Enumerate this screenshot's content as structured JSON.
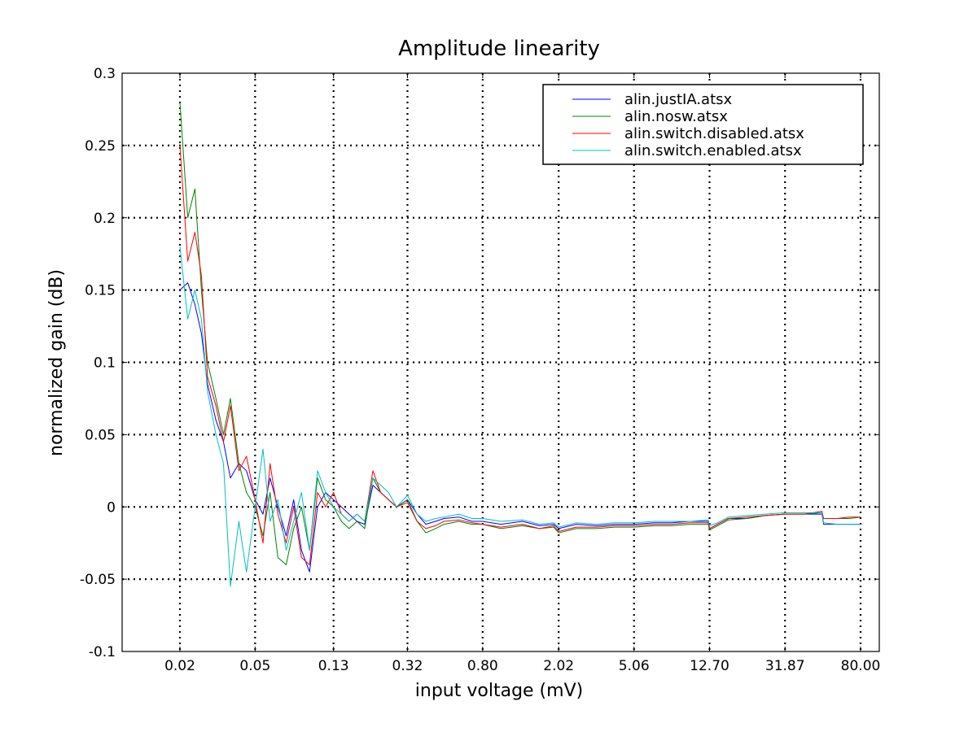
{
  "chart_data": {
    "type": "line",
    "title": "Amplitude linearity",
    "xlabel": "input voltage (mV)",
    "ylabel": "normalized gain (dB)",
    "x_scale": "log",
    "x_ticks": [
      0.02,
      0.05,
      0.13,
      0.32,
      0.8,
      2.02,
      5.06,
      12.7,
      31.87,
      80.0
    ],
    "x_tick_labels": [
      "0.02",
      "0.05",
      "0.13",
      "0.32",
      "0.80",
      "2.02",
      "5.06",
      "12.70",
      "31.87",
      "80.00"
    ],
    "ylim": [
      -0.1,
      0.3
    ],
    "y_ticks": [
      -0.1,
      -0.05,
      0,
      0.05,
      0.1,
      0.15,
      0.2,
      0.25,
      0.3
    ],
    "y_tick_labels": [
      "-0.1",
      "-0.05",
      "0",
      "0.05",
      "0.1",
      "0.15",
      "0.2",
      "0.25",
      "0.3"
    ],
    "grid": true,
    "legend_position": "top-right",
    "series": [
      {
        "name": "alin.justIA.atsx",
        "color": "#0000ff",
        "x": [
          0.02,
          0.022,
          0.024,
          0.026,
          0.028,
          0.031,
          0.034,
          0.037,
          0.041,
          0.045,
          0.05,
          0.055,
          0.06,
          0.066,
          0.073,
          0.08,
          0.088,
          0.097,
          0.107,
          0.118,
          0.13,
          0.143,
          0.157,
          0.173,
          0.19,
          0.21,
          0.231,
          0.254,
          0.28,
          0.32,
          0.36,
          0.4,
          0.45,
          0.5,
          0.6,
          0.7,
          0.8,
          1.0,
          1.3,
          1.6,
          1.9,
          2.02,
          2.5,
          3.2,
          4.0,
          5.06,
          6.5,
          8.0,
          10.0,
          12.5,
          12.7,
          14.0,
          16.0,
          20.0,
          25.0,
          31.87,
          40.0,
          50.0,
          51.0,
          60.0,
          70.0,
          80.0
        ],
        "y": [
          0.15,
          0.155,
          0.14,
          0.12,
          0.085,
          0.06,
          0.045,
          0.02,
          0.03,
          0.025,
          0.005,
          -0.005,
          0.02,
          0.0,
          -0.02,
          0.005,
          -0.03,
          -0.045,
          0.0,
          0.01,
          0.005,
          0.0,
          -0.005,
          -0.01,
          -0.012,
          0.015,
          0.01,
          0.005,
          0.0,
          0.005,
          -0.005,
          -0.012,
          -0.01,
          -0.008,
          -0.007,
          -0.01,
          -0.01,
          -0.012,
          -0.01,
          -0.013,
          -0.012,
          -0.015,
          -0.012,
          -0.013,
          -0.012,
          -0.012,
          -0.011,
          -0.011,
          -0.01,
          -0.01,
          -0.015,
          -0.012,
          -0.008,
          -0.008,
          -0.006,
          -0.005,
          -0.005,
          -0.005,
          -0.012,
          -0.012,
          -0.012,
          -0.012
        ]
      },
      {
        "name": "alin.nosw.atsx",
        "color": "#008000",
        "x": [
          0.02,
          0.022,
          0.024,
          0.026,
          0.028,
          0.031,
          0.034,
          0.037,
          0.041,
          0.045,
          0.05,
          0.055,
          0.06,
          0.066,
          0.073,
          0.08,
          0.088,
          0.097,
          0.107,
          0.118,
          0.13,
          0.143,
          0.157,
          0.173,
          0.19,
          0.21,
          0.231,
          0.254,
          0.28,
          0.32,
          0.36,
          0.4,
          0.45,
          0.5,
          0.6,
          0.7,
          0.8,
          1.0,
          1.3,
          1.6,
          1.9,
          2.02,
          2.5,
          3.2,
          4.0,
          5.06,
          6.5,
          8.0,
          10.0,
          12.5,
          12.7,
          14.0,
          16.0,
          20.0,
          25.0,
          31.87,
          40.0,
          50.0,
          51.0,
          60.0,
          70.0,
          80.0
        ],
        "y": [
          0.28,
          0.2,
          0.22,
          0.15,
          0.1,
          0.075,
          0.05,
          0.075,
          0.03,
          0.01,
          0.0,
          -0.02,
          0.01,
          -0.035,
          -0.04,
          -0.015,
          0.0,
          -0.03,
          0.02,
          0.005,
          0.0,
          -0.01,
          -0.015,
          -0.01,
          -0.015,
          0.02,
          0.01,
          0.005,
          0.0,
          0.005,
          -0.01,
          -0.018,
          -0.015,
          -0.012,
          -0.01,
          -0.012,
          -0.012,
          -0.015,
          -0.013,
          -0.015,
          -0.014,
          -0.018,
          -0.015,
          -0.015,
          -0.014,
          -0.014,
          -0.013,
          -0.013,
          -0.012,
          -0.012,
          -0.016,
          -0.013,
          -0.009,
          -0.008,
          -0.006,
          -0.005,
          -0.005,
          -0.004,
          -0.008,
          -0.008,
          -0.008,
          -0.007
        ]
      },
      {
        "name": "alin.switch.disabled.atsx",
        "color": "#ff0000",
        "x": [
          0.02,
          0.022,
          0.024,
          0.026,
          0.028,
          0.031,
          0.034,
          0.037,
          0.041,
          0.045,
          0.05,
          0.055,
          0.06,
          0.066,
          0.073,
          0.08,
          0.088,
          0.097,
          0.107,
          0.118,
          0.13,
          0.143,
          0.157,
          0.173,
          0.19,
          0.21,
          0.231,
          0.254,
          0.28,
          0.32,
          0.36,
          0.4,
          0.45,
          0.5,
          0.6,
          0.7,
          0.8,
          1.0,
          1.3,
          1.6,
          1.9,
          2.02,
          2.5,
          3.2,
          4.0,
          5.06,
          6.5,
          8.0,
          10.0,
          12.5,
          12.7,
          14.0,
          16.0,
          20.0,
          25.0,
          31.87,
          40.0,
          50.0,
          51.0,
          60.0,
          70.0,
          80.0
        ],
        "y": [
          0.25,
          0.17,
          0.19,
          0.16,
          0.09,
          0.07,
          0.045,
          0.07,
          0.025,
          0.035,
          0.005,
          -0.025,
          0.03,
          -0.005,
          -0.025,
          0.0,
          -0.035,
          -0.04,
          0.01,
          0.0,
          0.01,
          -0.005,
          -0.01,
          -0.005,
          -0.01,
          0.025,
          0.01,
          0.005,
          0.0,
          0.003,
          -0.01,
          -0.015,
          -0.013,
          -0.01,
          -0.009,
          -0.011,
          -0.012,
          -0.014,
          -0.012,
          -0.015,
          -0.013,
          -0.017,
          -0.014,
          -0.014,
          -0.013,
          -0.013,
          -0.012,
          -0.012,
          -0.011,
          -0.011,
          -0.015,
          -0.012,
          -0.008,
          -0.007,
          -0.006,
          -0.005,
          -0.005,
          -0.003,
          -0.008,
          -0.008,
          -0.007,
          -0.007
        ]
      },
      {
        "name": "alin.switch.enabled.atsx",
        "color": "#00bfbf",
        "x": [
          0.02,
          0.022,
          0.024,
          0.026,
          0.028,
          0.031,
          0.034,
          0.037,
          0.041,
          0.045,
          0.05,
          0.055,
          0.06,
          0.066,
          0.073,
          0.08,
          0.088,
          0.097,
          0.107,
          0.118,
          0.13,
          0.143,
          0.157,
          0.173,
          0.19,
          0.21,
          0.231,
          0.254,
          0.28,
          0.32,
          0.36,
          0.4,
          0.45,
          0.5,
          0.6,
          0.7,
          0.8,
          1.0,
          1.3,
          1.6,
          1.9,
          2.02,
          2.5,
          3.2,
          4.0,
          5.06,
          6.5,
          8.0,
          10.0,
          12.5,
          12.7,
          14.0,
          16.0,
          20.0,
          25.0,
          31.87,
          40.0,
          50.0,
          51.0,
          60.0,
          70.0,
          80.0
        ],
        "y": [
          0.18,
          0.13,
          0.15,
          0.13,
          0.08,
          0.05,
          0.03,
          -0.055,
          -0.01,
          -0.045,
          0.0,
          0.04,
          -0.01,
          0.005,
          -0.03,
          -0.01,
          0.01,
          -0.03,
          0.025,
          0.01,
          0.0,
          -0.005,
          -0.01,
          -0.005,
          -0.01,
          0.02,
          0.015,
          0.01,
          0.0,
          0.008,
          -0.005,
          -0.01,
          -0.008,
          -0.007,
          -0.005,
          -0.008,
          -0.008,
          -0.01,
          -0.009,
          -0.012,
          -0.011,
          -0.014,
          -0.011,
          -0.012,
          -0.011,
          -0.011,
          -0.01,
          -0.01,
          -0.01,
          -0.009,
          -0.013,
          -0.011,
          -0.007,
          -0.006,
          -0.005,
          -0.004,
          -0.004,
          -0.004,
          -0.011,
          -0.012,
          -0.012,
          -0.012
        ]
      }
    ]
  }
}
